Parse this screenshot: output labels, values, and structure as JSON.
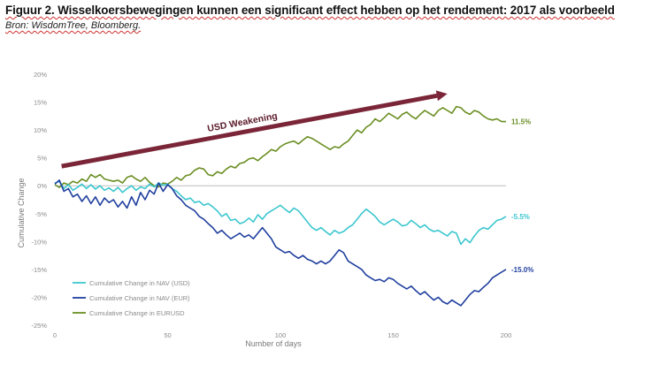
{
  "header": {
    "title": "Figuur 2. Wisselkoersbewegingen kunnen een significant effect hebben op het rendement: 2017 als voorbeeld",
    "source": "Bron: WisdomTree, Bloomberg."
  },
  "colors": {
    "usd": "#3cc7cf",
    "eur": "#1f3f9e",
    "eurusd": "#6a8e22",
    "arrow": "#7b2638",
    "zero_line": "#bdbdbd"
  },
  "chart_data": {
    "type": "line",
    "title": "",
    "xlabel": "Number of days",
    "ylabel": "Cumulative Change",
    "xlim": [
      0,
      200
    ],
    "ylim": [
      -25,
      20
    ],
    "x_ticks": [
      "0",
      "50",
      "100",
      "150",
      "200"
    ],
    "y_ticks": [
      "20%",
      "15%",
      "10%",
      "5%",
      "0%",
      "-5%",
      "-10%",
      "-15%",
      "-20%",
      "-25%"
    ],
    "grid": false,
    "legend_position": "bottom-left",
    "annotation": {
      "text": "USD Weakening",
      "arrow_from": [
        3,
        3.5
      ],
      "arrow_to": [
        174,
        16.5
      ]
    },
    "end_labels": [
      "11.5%",
      "-5.5%",
      "-15.0%"
    ],
    "series": [
      {
        "name": "Cumulative Change in NAV (USD)",
        "x": [
          0,
          2,
          4,
          6,
          8,
          10,
          12,
          14,
          16,
          18,
          20,
          22,
          24,
          26,
          28,
          30,
          32,
          34,
          36,
          38,
          40,
          42,
          44,
          46,
          48,
          50,
          52,
          54,
          56,
          58,
          60,
          62,
          64,
          66,
          68,
          70,
          72,
          74,
          76,
          78,
          80,
          82,
          84,
          86,
          88,
          90,
          92,
          94,
          96,
          98,
          100,
          102,
          104,
          106,
          108,
          110,
          112,
          114,
          116,
          118,
          120,
          122,
          124,
          126,
          128,
          130,
          132,
          134,
          136,
          138,
          140,
          142,
          144,
          146,
          148,
          150,
          152,
          154,
          156,
          158,
          160,
          162,
          164,
          166,
          168,
          170,
          172,
          174,
          176,
          178,
          180,
          182,
          184,
          186,
          188,
          190,
          192,
          194,
          196,
          198,
          200
        ],
        "values": [
          0.5,
          0.8,
          -0.5,
          0.2,
          -0.8,
          -0.3,
          0.3,
          -0.5,
          0.2,
          -0.6,
          0.0,
          -0.8,
          -0.4,
          -1.0,
          -0.3,
          -1.2,
          -0.5,
          0.0,
          -0.8,
          -0.2,
          -0.5,
          0.3,
          -0.2,
          0.5,
          0.1,
          0.3,
          -0.5,
          -1.0,
          -1.8,
          -2.5,
          -2.2,
          -3.0,
          -2.8,
          -3.5,
          -3.2,
          -3.8,
          -4.5,
          -5.5,
          -5.0,
          -6.2,
          -6.0,
          -6.8,
          -6.5,
          -5.8,
          -6.5,
          -5.2,
          -6.0,
          -5.0,
          -4.5,
          -4.0,
          -3.5,
          -4.2,
          -4.8,
          -4.0,
          -4.5,
          -5.5,
          -6.5,
          -7.5,
          -8.0,
          -7.5,
          -8.2,
          -8.8,
          -8.0,
          -8.5,
          -8.2,
          -7.5,
          -7.0,
          -6.0,
          -5.0,
          -4.2,
          -4.8,
          -5.5,
          -6.5,
          -7.0,
          -6.5,
          -6.0,
          -6.5,
          -7.2,
          -7.0,
          -6.2,
          -6.8,
          -7.5,
          -7.0,
          -7.8,
          -8.2,
          -8.0,
          -8.5,
          -9.0,
          -8.2,
          -8.5,
          -10.5,
          -9.5,
          -10.2,
          -9.0,
          -8.0,
          -7.5,
          -7.8,
          -7.0,
          -6.2,
          -6.0,
          -5.5
        ]
      },
      {
        "name": "Cumulative Change in NAV (EUR)",
        "x": [
          0,
          2,
          4,
          6,
          8,
          10,
          12,
          14,
          16,
          18,
          20,
          22,
          24,
          26,
          28,
          30,
          32,
          34,
          36,
          38,
          40,
          42,
          44,
          46,
          48,
          50,
          52,
          54,
          56,
          58,
          60,
          62,
          64,
          66,
          68,
          70,
          72,
          74,
          76,
          78,
          80,
          82,
          84,
          86,
          88,
          90,
          92,
          94,
          96,
          98,
          100,
          102,
          104,
          106,
          108,
          110,
          112,
          114,
          116,
          118,
          120,
          122,
          124,
          126,
          128,
          130,
          132,
          134,
          136,
          138,
          140,
          142,
          144,
          146,
          148,
          150,
          152,
          154,
          156,
          158,
          160,
          162,
          164,
          166,
          168,
          170,
          172,
          174,
          176,
          178,
          180,
          182,
          184,
          186,
          188,
          190,
          192,
          194,
          196,
          198,
          200
        ],
        "values": [
          0.3,
          1.0,
          -1.0,
          -0.5,
          -2.0,
          -1.5,
          -2.8,
          -1.8,
          -3.2,
          -2.0,
          -3.5,
          -2.2,
          -3.0,
          -2.5,
          -3.8,
          -2.8,
          -4.0,
          -2.0,
          -3.5,
          -1.2,
          -2.5,
          -0.8,
          -1.5,
          0.5,
          -1.0,
          0.2,
          -0.5,
          -1.8,
          -2.5,
          -3.5,
          -4.0,
          -4.5,
          -5.5,
          -6.0,
          -6.8,
          -7.5,
          -8.5,
          -8.0,
          -8.8,
          -9.5,
          -9.0,
          -8.5,
          -9.2,
          -8.8,
          -9.5,
          -8.5,
          -7.5,
          -8.5,
          -9.5,
          -11.0,
          -11.5,
          -12.0,
          -11.8,
          -12.5,
          -13.0,
          -12.5,
          -13.2,
          -13.5,
          -14.0,
          -13.5,
          -14.0,
          -13.5,
          -12.5,
          -11.5,
          -12.0,
          -13.5,
          -14.0,
          -14.5,
          -15.0,
          -16.0,
          -16.5,
          -17.0,
          -16.8,
          -17.2,
          -16.5,
          -16.8,
          -17.5,
          -18.0,
          -18.5,
          -18.0,
          -18.8,
          -19.5,
          -19.0,
          -19.8,
          -20.5,
          -20.0,
          -20.8,
          -21.2,
          -20.5,
          -21.0,
          -21.5,
          -20.5,
          -19.5,
          -18.8,
          -19.0,
          -18.2,
          -17.5,
          -16.5,
          -16.0,
          -15.5,
          -15.0
        ]
      },
      {
        "name": "Cumulative Change in EURUSD",
        "x": [
          0,
          2,
          4,
          6,
          8,
          10,
          12,
          14,
          16,
          18,
          20,
          22,
          24,
          26,
          28,
          30,
          32,
          34,
          36,
          38,
          40,
          42,
          44,
          46,
          48,
          50,
          52,
          54,
          56,
          58,
          60,
          62,
          64,
          66,
          68,
          70,
          72,
          74,
          76,
          78,
          80,
          82,
          84,
          86,
          88,
          90,
          92,
          94,
          96,
          98,
          100,
          102,
          104,
          106,
          108,
          110,
          112,
          114,
          116,
          118,
          120,
          122,
          124,
          126,
          128,
          130,
          132,
          134,
          136,
          138,
          140,
          142,
          144,
          146,
          148,
          150,
          152,
          154,
          156,
          158,
          160,
          162,
          164,
          166,
          168,
          170,
          172,
          174,
          176,
          178,
          180,
          182,
          184,
          186,
          188,
          190,
          192,
          194,
          196,
          198,
          200
        ],
        "values": [
          0.2,
          -0.3,
          0.5,
          0.2,
          0.8,
          0.5,
          1.2,
          0.8,
          2.0,
          1.5,
          2.0,
          1.2,
          1.0,
          0.8,
          1.0,
          0.5,
          1.5,
          1.8,
          1.2,
          0.8,
          1.5,
          0.6,
          0.0,
          -0.2,
          0.5,
          0.3,
          0.8,
          1.5,
          1.0,
          1.8,
          2.0,
          2.8,
          3.2,
          3.0,
          2.0,
          1.8,
          2.5,
          2.2,
          3.0,
          3.5,
          3.2,
          4.0,
          4.2,
          4.8,
          5.0,
          4.5,
          5.2,
          5.8,
          6.5,
          6.2,
          7.0,
          7.5,
          7.8,
          8.0,
          7.5,
          8.2,
          8.8,
          8.5,
          8.0,
          7.5,
          7.0,
          6.5,
          7.0,
          6.8,
          7.5,
          8.0,
          9.0,
          10.0,
          9.5,
          10.5,
          11.0,
          12.0,
          11.5,
          12.2,
          13.0,
          12.5,
          12.0,
          12.8,
          13.2,
          12.5,
          12.0,
          12.8,
          13.5,
          13.0,
          12.5,
          13.5,
          14.0,
          13.5,
          13.0,
          14.2,
          14.0,
          13.2,
          12.8,
          13.5,
          13.2,
          12.5,
          12.0,
          11.8,
          12.0,
          11.5,
          11.5
        ]
      }
    ]
  }
}
